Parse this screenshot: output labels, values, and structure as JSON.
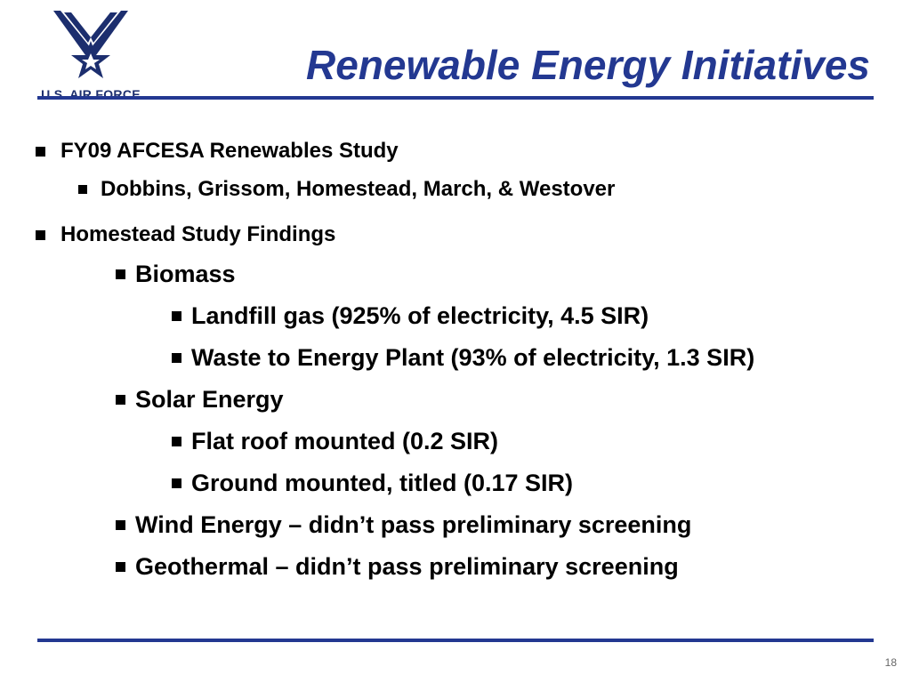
{
  "logo": {
    "icon": "air-force-wings-icon",
    "text": "U.S. AIR FORCE"
  },
  "title": "Renewable Energy Initiatives",
  "colors": {
    "brand_blue": "#233891",
    "text": "#000000"
  },
  "bullets": [
    {
      "level": 1,
      "text": "FY09 AFCESA Renewables Study"
    },
    {
      "level": 2,
      "text": "Dobbins, Grissom, Homestead, March, & Westover"
    },
    {
      "level": 1,
      "text": "Homestead Study Findings"
    },
    {
      "level": 2,
      "text": "Biomass"
    },
    {
      "level": 3,
      "text": "Landfill gas (925% of electricity, 4.5 SIR)"
    },
    {
      "level": 3,
      "text": "Waste to Energy Plant (93% of electricity, 1.3 SIR)"
    },
    {
      "level": 2,
      "text": "Solar Energy"
    },
    {
      "level": 3,
      "text": "Flat roof mounted (0.2 SIR)"
    },
    {
      "level": 3,
      "text": "Ground mounted, titled (0.17 SIR)"
    },
    {
      "level": 2,
      "text": "Wind Energy – didn’t pass preliminary screening"
    },
    {
      "level": 2,
      "text": "Geothermal – didn’t pass preliminary screening"
    }
  ],
  "page_number": "18"
}
